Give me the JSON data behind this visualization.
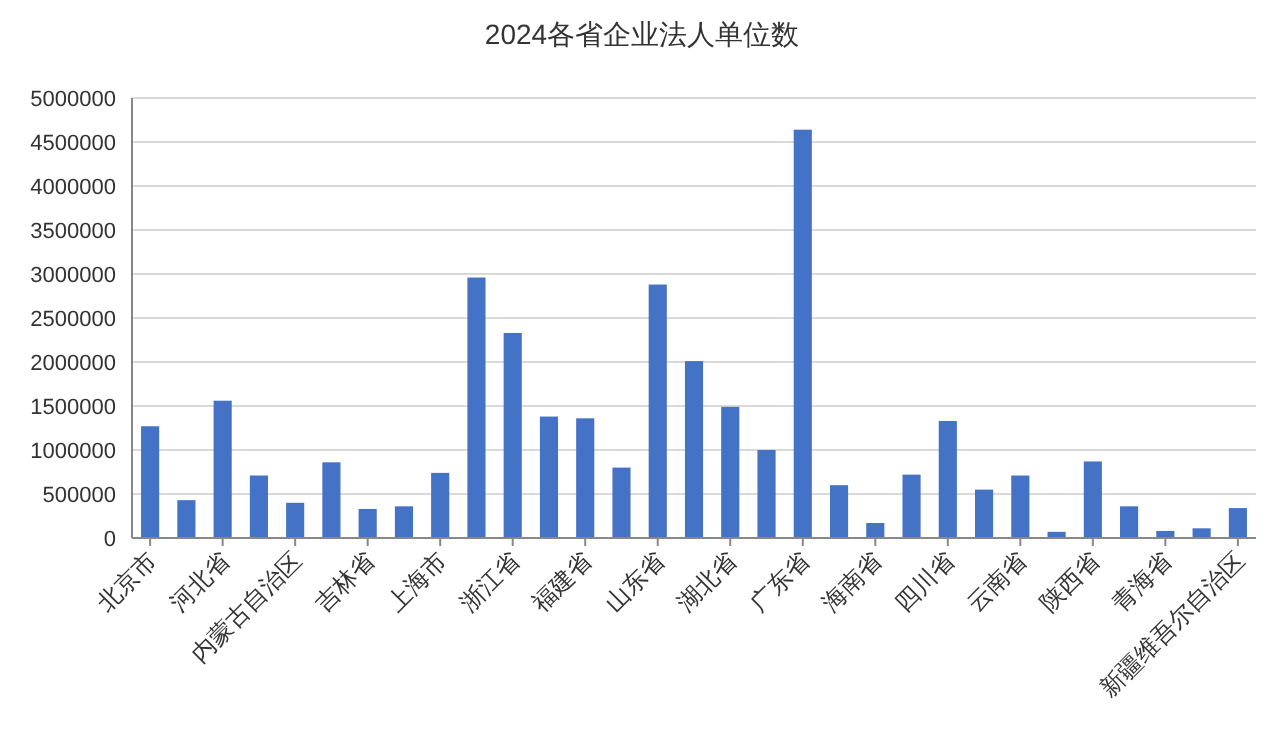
{
  "chart_data": {
    "type": "bar",
    "title": "2024各省企业法人单位数",
    "categories": [
      "北京市",
      null,
      "河北省",
      null,
      "内蒙古自治区",
      null,
      "吉林省",
      null,
      "上海市",
      null,
      "浙江省",
      null,
      "福建省",
      null,
      "山东省",
      null,
      "湖北省",
      null,
      "广东省",
      null,
      "海南省",
      null,
      "四川省",
      null,
      "云南省",
      null,
      "陕西省",
      null,
      "青海省",
      null,
      "新疆维吾尔自治区"
    ],
    "values": [
      1270000,
      430000,
      1560000,
      710000,
      400000,
      860000,
      330000,
      360000,
      740000,
      2960000,
      2330000,
      1380000,
      1360000,
      800000,
      2880000,
      2010000,
      1490000,
      1000000,
      4640000,
      600000,
      170000,
      720000,
      1330000,
      550000,
      710000,
      70000,
      870000,
      360000,
      80000,
      110000,
      340000
    ],
    "color": "#4472c4",
    "ylim": [
      0,
      5000000
    ],
    "yticks": [
      0,
      500000,
      1000000,
      1500000,
      2000000,
      2500000,
      3000000,
      3500000,
      4000000,
      4500000,
      5000000
    ],
    "grid": "y"
  }
}
